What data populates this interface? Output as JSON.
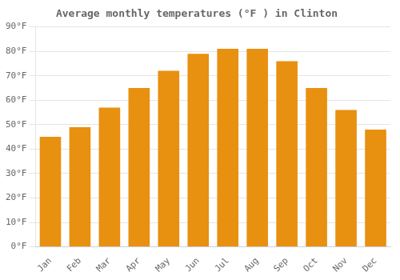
{
  "chart_data": {
    "type": "bar",
    "title": "Average monthly temperatures (°F ) in Clinton",
    "categories": [
      "Jan",
      "Feb",
      "Mar",
      "Apr",
      "May",
      "Jun",
      "Jul",
      "Aug",
      "Sep",
      "Oct",
      "Nov",
      "Dec"
    ],
    "values": [
      45,
      49,
      57,
      65,
      72,
      79,
      81,
      81,
      76,
      65,
      56,
      48
    ],
    "color": "#E89010",
    "ylim": [
      0,
      90
    ],
    "yticks": [
      {
        "value": 0,
        "label": "0°F"
      },
      {
        "value": 10,
        "label": "10°F"
      },
      {
        "value": 20,
        "label": "20°F"
      },
      {
        "value": 30,
        "label": "30°F"
      },
      {
        "value": 40,
        "label": "40°F"
      },
      {
        "value": 50,
        "label": "50°F"
      },
      {
        "value": 60,
        "label": "60°F"
      },
      {
        "value": 70,
        "label": "70°F"
      },
      {
        "value": 80,
        "label": "80°F"
      },
      {
        "value": 90,
        "label": "90°F"
      }
    ],
    "grid": true
  }
}
